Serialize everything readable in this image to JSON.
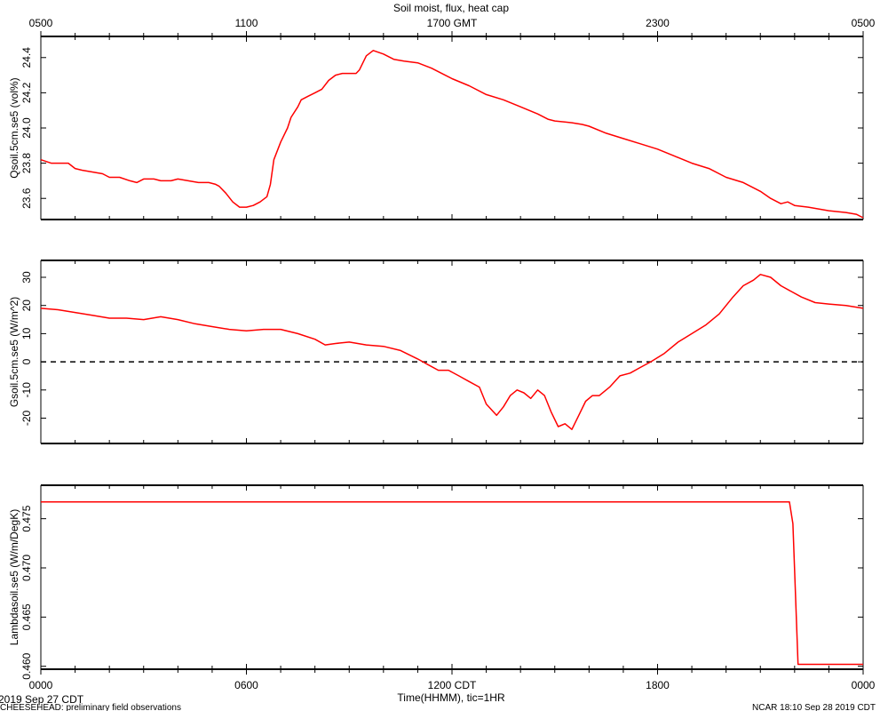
{
  "title": "Soil moist, flux, heat cap",
  "footer": {
    "date_left": "2019 Sep 27 CDT",
    "project": "CHEESEHEAD: preliminary field observations",
    "stamp_right": "NCAR 18:10 Sep 28 2019 CDT",
    "xlabel": "Time(HHMM), tic=1HR"
  },
  "x_axis": {
    "range": [
      0,
      24
    ],
    "top_ticks": [
      {
        "x": 0,
        "label": "0500"
      },
      {
        "x": 6,
        "label": "1100"
      },
      {
        "x": 12,
        "label": "1700 GMT"
      },
      {
        "x": 18,
        "label": "2300"
      },
      {
        "x": 24,
        "label": "0500"
      }
    ],
    "bottom_ticks": [
      {
        "x": 0,
        "label": "0000"
      },
      {
        "x": 6,
        "label": "0600"
      },
      {
        "x": 12,
        "label": "1200 CDT"
      },
      {
        "x": 18,
        "label": "1800"
      },
      {
        "x": 24,
        "label": "0000"
      }
    ]
  },
  "colors": {
    "series": "#ff0000",
    "axis": "#000000",
    "zero_line": "#000000"
  },
  "chart_data": [
    {
      "type": "line",
      "ylabel": "Qsoil.5cm.se5 (vol%)",
      "ylim": [
        23.48,
        24.52
      ],
      "yticks": [
        23.6,
        23.8,
        24.0,
        24.2,
        24.4
      ],
      "ytick_labels": [
        "23.6",
        "23.8",
        "24.0",
        "24.2",
        "24.4"
      ],
      "series": [
        {
          "x": [
            0,
            0.3,
            0.5,
            0.8,
            1,
            1.2,
            1.5,
            1.8,
            2,
            2.3,
            2.6,
            2.8,
            3,
            3.3,
            3.5,
            3.8,
            4,
            4.3,
            4.6,
            4.9,
            5.1,
            5.2,
            5.4,
            5.6,
            5.8,
            6,
            6.2,
            6.4,
            6.6,
            6.7,
            6.8,
            7,
            7.2,
            7.3,
            7.5,
            7.6,
            7.8,
            8,
            8.2,
            8.4,
            8.6,
            8.8,
            9,
            9.2,
            9.3,
            9.5,
            9.7,
            10,
            10.3,
            10.6,
            11,
            11.4,
            11.7,
            12,
            12.5,
            13,
            13.5,
            14,
            14.5,
            14.8,
            15,
            15.5,
            15.8,
            16,
            16.5,
            17,
            17.5,
            18,
            18.5,
            19,
            19.5,
            20,
            20.5,
            21,
            21.3,
            21.6,
            21.8,
            22,
            22.4,
            22.7,
            23,
            23.5,
            23.8,
            24
          ],
          "y": [
            23.82,
            23.8,
            23.8,
            23.8,
            23.77,
            23.76,
            23.75,
            23.74,
            23.72,
            23.72,
            23.7,
            23.69,
            23.71,
            23.71,
            23.7,
            23.7,
            23.71,
            23.7,
            23.69,
            23.69,
            23.68,
            23.67,
            23.63,
            23.58,
            23.55,
            23.55,
            23.56,
            23.58,
            23.61,
            23.68,
            23.82,
            23.92,
            24.0,
            24.06,
            24.12,
            24.16,
            24.18,
            24.2,
            24.22,
            24.27,
            24.3,
            24.31,
            24.31,
            24.31,
            24.33,
            24.41,
            24.44,
            24.42,
            24.39,
            24.38,
            24.37,
            24.34,
            24.31,
            24.28,
            24.24,
            24.19,
            24.16,
            24.12,
            24.08,
            24.05,
            24.04,
            24.03,
            24.02,
            24.01,
            23.97,
            23.94,
            23.91,
            23.88,
            23.84,
            23.8,
            23.77,
            23.72,
            23.69,
            23.64,
            23.6,
            23.57,
            23.58,
            23.56,
            23.55,
            23.54,
            23.53,
            23.52,
            23.51,
            23.49
          ]
        }
      ]
    },
    {
      "type": "line",
      "ylabel": "Gsoil.5cm.se5 (W/m^2)",
      "ylim": [
        -29,
        36
      ],
      "yticks": [
        -20,
        -10,
        0,
        10,
        20,
        30
      ],
      "ytick_labels": [
        "-20",
        "-10",
        "0",
        "10",
        "20",
        "30"
      ],
      "reference_line": {
        "y": 0,
        "style": "dashed"
      },
      "series": [
        {
          "x": [
            0,
            0.5,
            1,
            1.5,
            2,
            2.5,
            3,
            3.5,
            4,
            4.5,
            5,
            5.5,
            6,
            6.5,
            7,
            7.5,
            8,
            8.3,
            8.6,
            9,
            9.5,
            10,
            10.5,
            11,
            11.3,
            11.6,
            11.9,
            12.2,
            12.5,
            12.8,
            13,
            13.3,
            13.5,
            13.7,
            13.9,
            14.1,
            14.3,
            14.5,
            14.7,
            14.9,
            15.1,
            15.3,
            15.5,
            15.7,
            15.9,
            16.1,
            16.3,
            16.6,
            16.9,
            17.2,
            17.5,
            17.8,
            18.2,
            18.6,
            19,
            19.4,
            19.8,
            20.2,
            20.5,
            20.8,
            21,
            21.3,
            21.6,
            21.9,
            22.2,
            22.6,
            23,
            23.5,
            24
          ],
          "y": [
            19,
            18.5,
            17.5,
            16.5,
            15.5,
            15.5,
            15,
            16,
            15,
            13.5,
            12.5,
            11.5,
            11,
            11.5,
            11.5,
            10,
            8,
            6,
            6.5,
            7,
            6,
            5.5,
            4,
            1,
            -1,
            -3,
            -3,
            -5,
            -7,
            -9,
            -15,
            -19,
            -16,
            -12,
            -10,
            -11,
            -13,
            -10,
            -12,
            -18,
            -23,
            -22,
            -24,
            -19,
            -14,
            -12,
            -12,
            -9,
            -5,
            -4,
            -2,
            0,
            3,
            7,
            10,
            13,
            17,
            23,
            27,
            29,
            31,
            30,
            27,
            25,
            23,
            21,
            20.5,
            20,
            19
          ]
        }
      ]
    },
    {
      "type": "line",
      "ylabel": "Lambdasoil.se5 (W/m/DegK)",
      "ylim": [
        0.4597,
        0.4784
      ],
      "yticks": [
        0.46,
        0.465,
        0.47,
        0.475
      ],
      "ytick_labels": [
        "0.460",
        "0.465",
        "0.470",
        "0.475"
      ],
      "series": [
        {
          "x": [
            0,
            21.85,
            21.95,
            22.1,
            22.15,
            24
          ],
          "y": [
            0.4767,
            0.4767,
            0.4745,
            0.4602,
            0.4602,
            0.4602
          ]
        }
      ]
    }
  ]
}
